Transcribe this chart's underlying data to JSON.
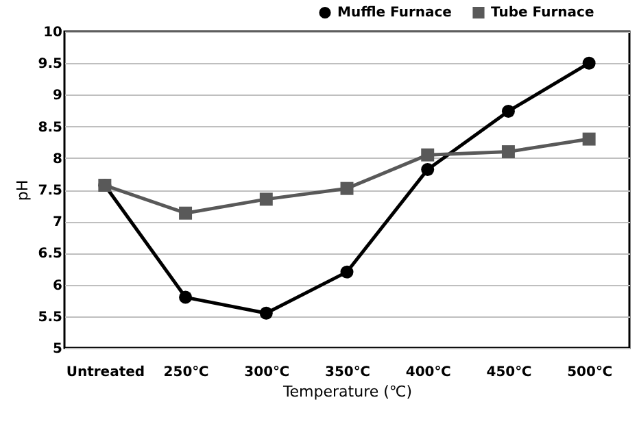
{
  "chart_data": {
    "type": "line",
    "xlabel": "Temperature (℃)",
    "ylabel": "pH",
    "categories": [
      "Untreated",
      "250℃",
      "300℃",
      "350℃",
      "400℃",
      "450℃",
      "500℃"
    ],
    "series": [
      {
        "name": "Muffle Furnace",
        "color": "#000000",
        "marker": "circle",
        "values": [
          7.57,
          5.8,
          5.55,
          6.2,
          7.82,
          8.74,
          9.5
        ]
      },
      {
        "name": "Tube Furnace",
        "color": "#595959",
        "marker": "square",
        "values": [
          7.57,
          7.13,
          7.35,
          7.52,
          8.05,
          8.1,
          8.3
        ]
      }
    ],
    "ylim": [
      5,
      10
    ],
    "yticks": [
      5,
      5.5,
      6,
      6.5,
      7,
      7.5,
      8,
      8.5,
      9,
      9.5,
      10
    ],
    "grid": "y",
    "legend": "top right"
  }
}
